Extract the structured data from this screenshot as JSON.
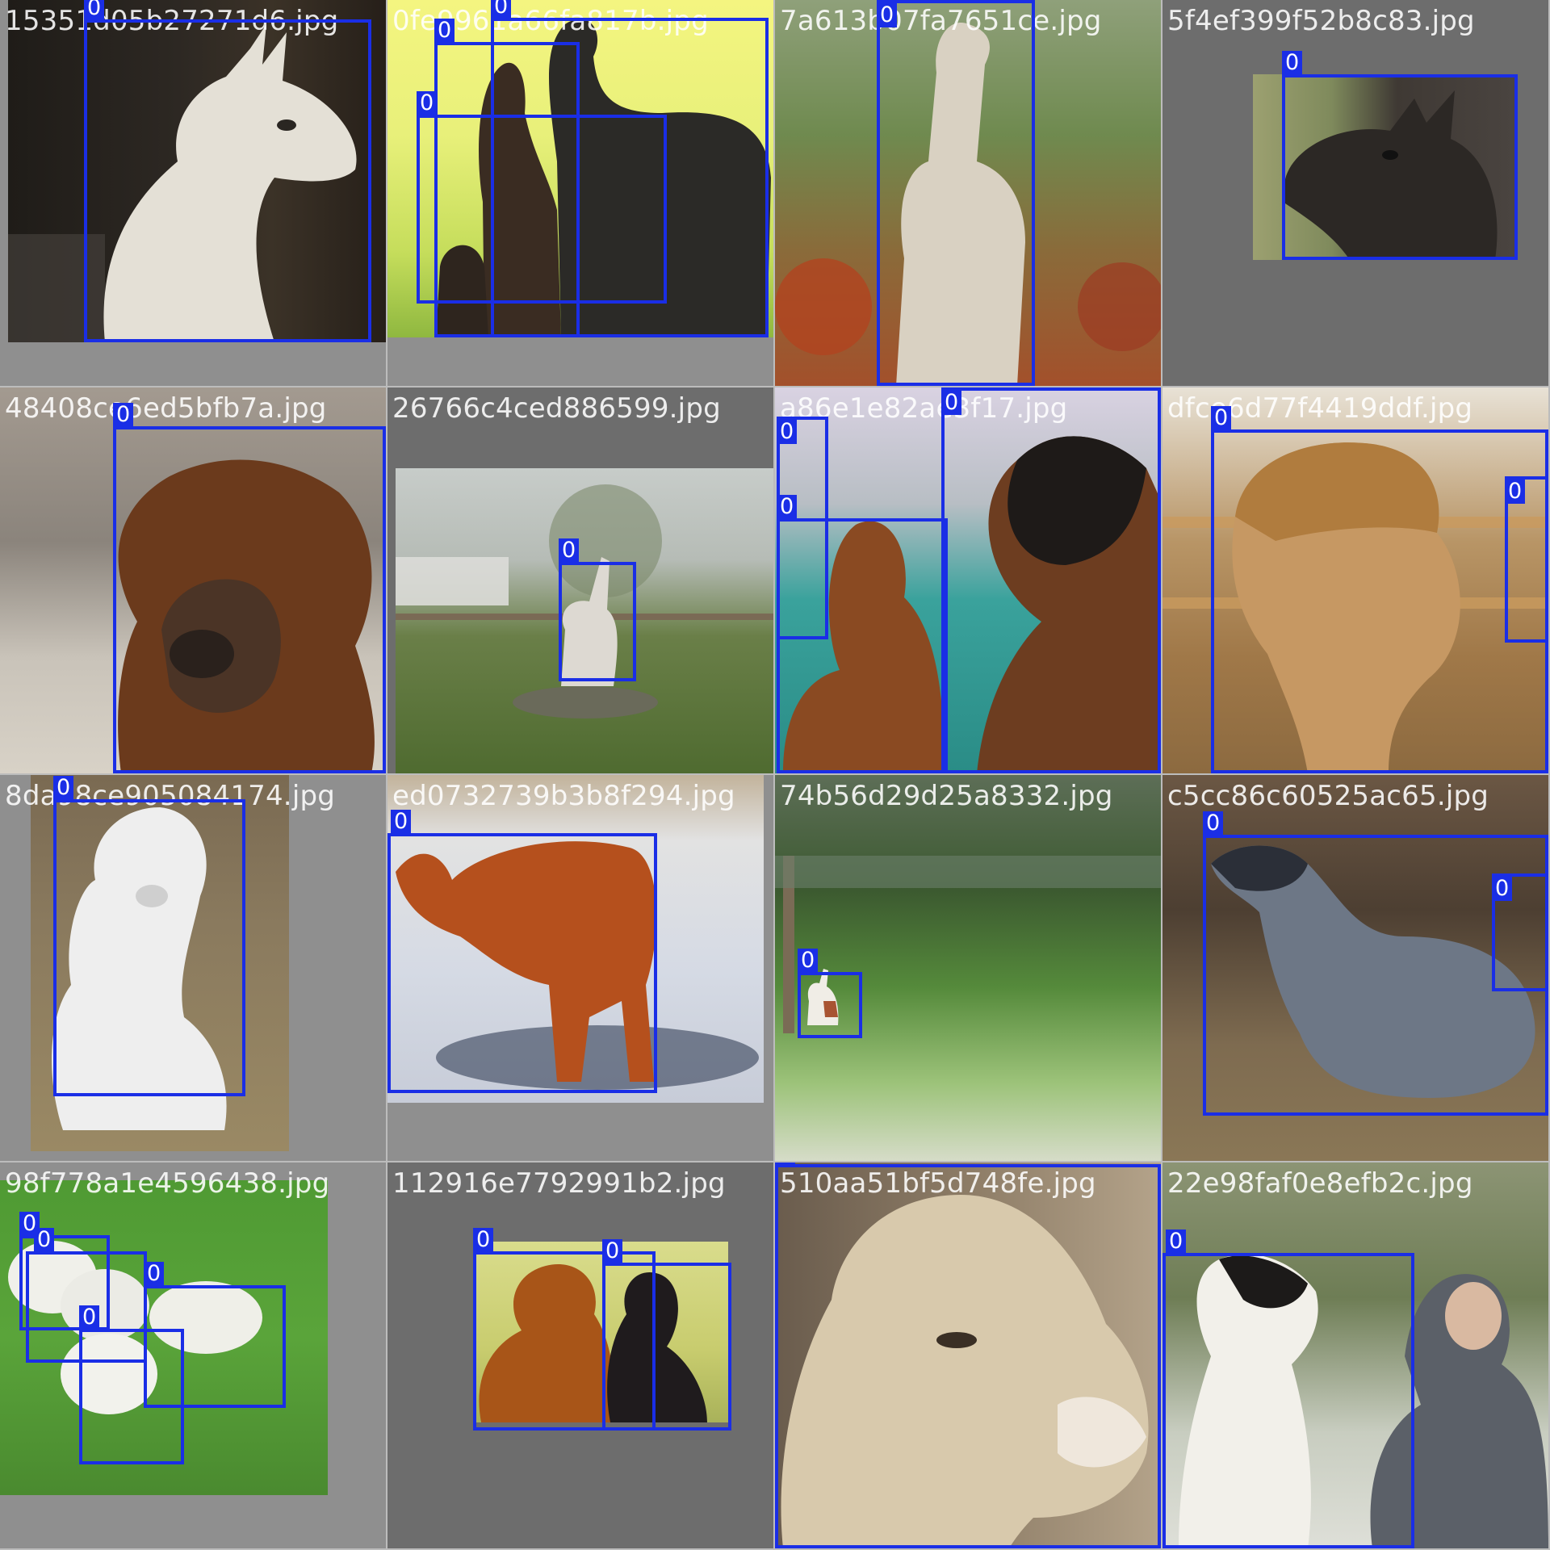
{
  "colors": {
    "box": "#1a2ee6",
    "label_text": "#ffffff",
    "filename_text": "#ffffff",
    "tile_background": "#8f8f8f"
  },
  "tiles": [
    {
      "filename": "15351d05b27271d6.jpg",
      "subject": "white llama head profile",
      "boxes": [
        "0"
      ]
    },
    {
      "filename": "0fe9961a66fa817b.jpg",
      "subject": "three dark alpacas on green",
      "boxes": [
        "0",
        "0",
        "0"
      ]
    },
    {
      "filename": "7a613b07fa7651ce.jpg",
      "subject": "light alpaca standing among autumn shrubs",
      "boxes": [
        "0"
      ]
    },
    {
      "filename": "5f4ef399f52b8c83.jpg",
      "subject": "dark llama head with halter",
      "boxes": [
        "0"
      ]
    },
    {
      "filename": "48408ce6ed5bfb7a.jpg",
      "subject": "fluffy brown alpaca face",
      "boxes": [
        "0"
      ]
    },
    {
      "filename": "26766c4ced886599.jpg",
      "subject": "llama in distant field",
      "boxes": [
        "0"
      ]
    },
    {
      "filename": "a86e1e82ae3f17.jpg",
      "subject": "brown alpacas at enclosure",
      "boxes": [
        "0",
        "0",
        "0"
      ]
    },
    {
      "filename": "dfce6d77f4419ddf.jpg",
      "subject": "tan alpaca with fluffy topknot",
      "boxes": [
        "0",
        "0"
      ]
    },
    {
      "filename": "8da98ce905084174.jpg",
      "subject": "white alpaca lying on straw",
      "boxes": [
        "0"
      ]
    },
    {
      "filename": "ed0732739b3b8f294.jpg",
      "subject": "orange alpaca on snow",
      "boxes": [
        "0"
      ]
    },
    {
      "filename": "74b56d29d25a8332.jpg",
      "subject": "small llama by fence",
      "boxes": [
        "0"
      ]
    },
    {
      "filename": "c5cc86c60525ac65.jpg",
      "subject": "grey alpaca in barn",
      "boxes": [
        "0",
        "0"
      ]
    },
    {
      "filename": "98f778a1e4596438.jpg",
      "subject": "white lambs on grass",
      "boxes": [
        "0",
        "0",
        "0",
        "0"
      ]
    },
    {
      "filename": "112916e7792991b2.jpg",
      "subject": "brown and black alpacas",
      "boxes": [
        "0",
        "0"
      ]
    },
    {
      "filename": "510aa51bf5d748fe.jpg",
      "subject": "llama face close-up",
      "boxes": [
        "0"
      ]
    },
    {
      "filename": "22e98faf0e8efb2c.jpg",
      "subject": "llama being fed by man",
      "boxes": [
        "0"
      ]
    }
  ]
}
